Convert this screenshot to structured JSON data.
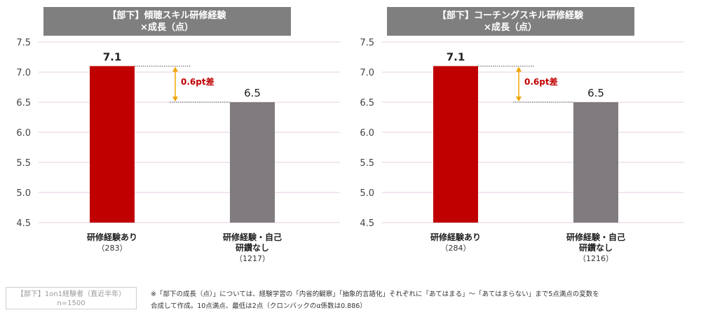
{
  "chart_data": [
    {
      "type": "bar",
      "title": "【部下】傾聴スキル研修経験\n×成長（点）",
      "categories": [
        {
          "name": "研修経験あり",
          "n": "（283）"
        },
        {
          "name": "研修経験・自己\n研鑽なし",
          "n": "（1217）"
        }
      ],
      "values": [
        7.1,
        6.5
      ],
      "value_labels": [
        "7.1",
        "6.5"
      ],
      "ylim": [
        4.5,
        7.5
      ],
      "yticks": [
        "4.5",
        "5.0",
        "5.5",
        "6.0",
        "6.5",
        "7.0",
        "7.5"
      ],
      "diff_label": "0.6pt差",
      "colors": [
        "#c00000",
        "#7f7b7e"
      ]
    },
    {
      "type": "bar",
      "title": "【部下】コーチングスキル研修経験\n×成長（点）",
      "categories": [
        {
          "name": "研修経験あり",
          "n": "（284）"
        },
        {
          "name": "研修経験・自己\n研鑽なし",
          "n": "（1216）"
        }
      ],
      "values": [
        7.1,
        6.5
      ],
      "value_labels": [
        "7.1",
        "6.5"
      ],
      "ylim": [
        4.5,
        7.5
      ],
      "yticks": [
        "4.5",
        "5.0",
        "5.5",
        "6.0",
        "6.5",
        "7.0",
        "7.5"
      ],
      "diff_label": "0.6pt差",
      "colors": [
        "#c00000",
        "#7f7b7e"
      ]
    }
  ],
  "footnote": {
    "sample_line1": "【部下】1on1経験者（直近半年）",
    "sample_line2": "n=1500",
    "note_line1": "※「部下の成長（点）」については、経験学習の「内省的観察」「抽象的言語化」それぞれに「あてはまる」～「あてはまらない」まで5点満点の変数を",
    "note_line2": "合成して作成。10点満点、最低は2点（クロンバックのα係数は0.886）"
  },
  "colors": {
    "title_bg": "#7f7f7f",
    "diff_arrow": "#f0a500",
    "diff_text": "#c00000",
    "grid": "#e6cfe0"
  }
}
